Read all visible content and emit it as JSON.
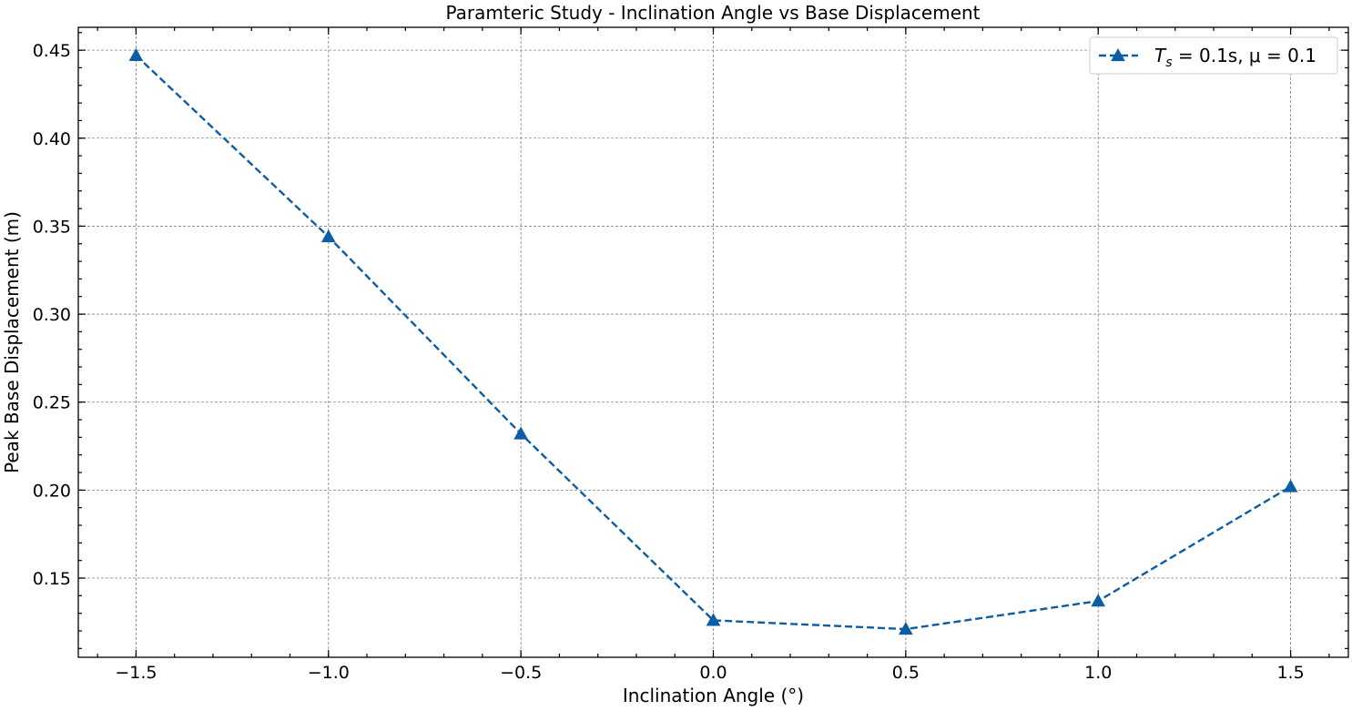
{
  "chart_data": {
    "type": "line",
    "title": "Paramteric Study - Inclination Angle vs Base Displacement",
    "xlabel": "Inclination Angle (°)",
    "ylabel": "Peak Base Displacement (m)",
    "xlim": [
      -1.65,
      1.65
    ],
    "ylim": [
      0.105,
      0.463
    ],
    "x_ticks": [
      -1.5,
      -1.0,
      -0.5,
      0.0,
      0.5,
      1.0,
      1.5
    ],
    "x_tick_labels": [
      "−1.5",
      "−1.0",
      "−0.5",
      "0.0",
      "0.5",
      "1.0",
      "1.5"
    ],
    "y_ticks": [
      0.15,
      0.2,
      0.25,
      0.3,
      0.35,
      0.4,
      0.45
    ],
    "y_tick_labels": [
      "0.15",
      "0.20",
      "0.25",
      "0.30",
      "0.35",
      "0.40",
      "0.45"
    ],
    "x_minor_step": 0.1,
    "y_minor_step": 0.01,
    "grid": true,
    "legend_position": "top-right",
    "series": [
      {
        "name": "T_s = 0.1s, μ = 0.1",
        "color": "#0c5da5",
        "line_style": "dashed",
        "marker": "triangle-up",
        "x": [
          -1.5,
          -1.0,
          -0.5,
          0.0,
          0.5,
          1.0,
          1.5
        ],
        "y": [
          0.447,
          0.344,
          0.232,
          0.126,
          0.121,
          0.137,
          0.202
        ]
      }
    ]
  }
}
